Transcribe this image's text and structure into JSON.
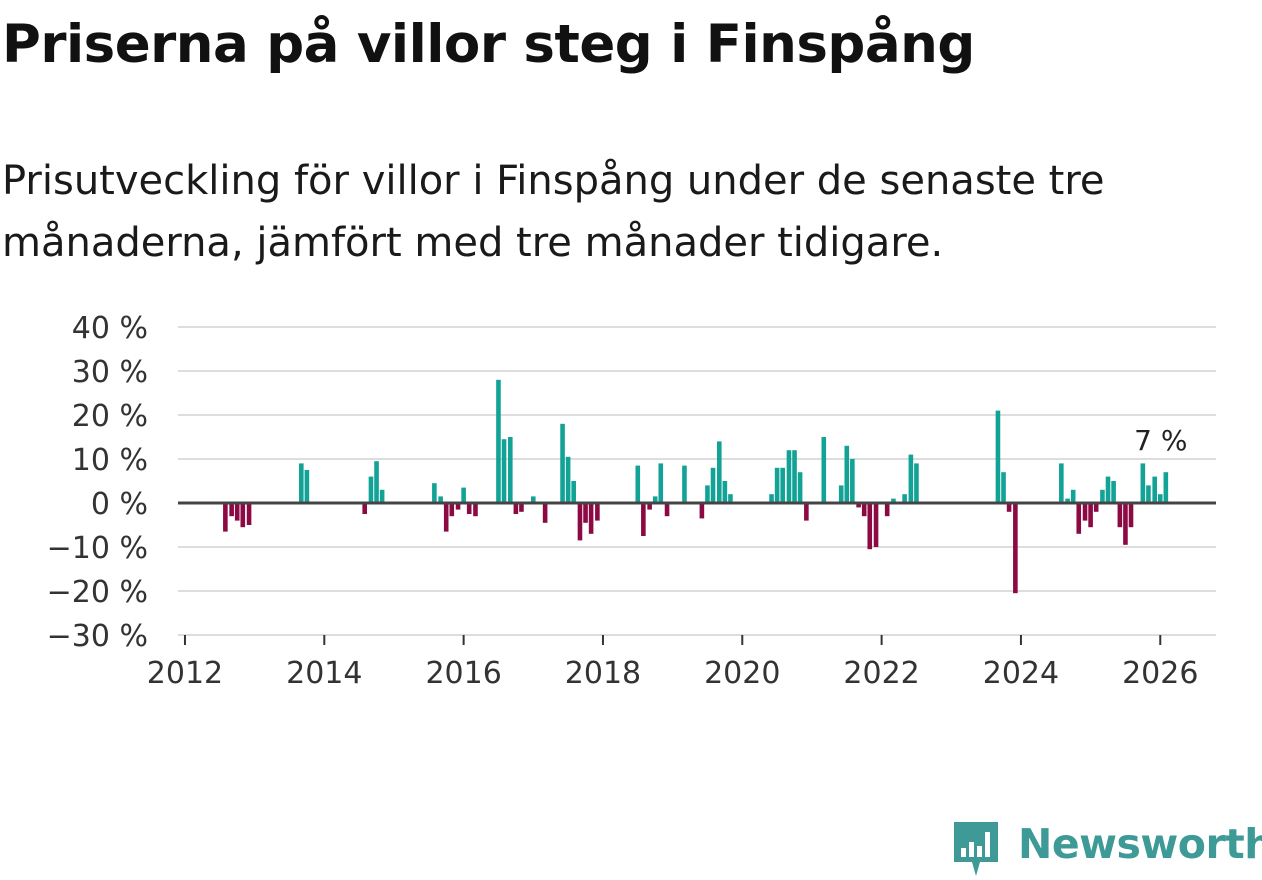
{
  "title": "Priserna på villor steg i Finspång",
  "subtitle": "Prisutveckling för villor i Finspång under de senaste tre månaderna, jämfört med tre månader tidigare.",
  "brand": {
    "name": "Newsworthy",
    "color": "#3d9a96",
    "icon": "newsworthy-logo-icon"
  },
  "colors": {
    "positive": "#13a396",
    "negative": "#8c0a44",
    "grid": "#dddddd",
    "zero": "#444444"
  },
  "chart_data": {
    "type": "bar",
    "title": "Priserna på villor steg i Finspång",
    "xlabel": "",
    "ylabel": "",
    "ylim": [
      -30,
      40
    ],
    "xlim": [
      2011.9,
      2026.8
    ],
    "grid": true,
    "y_ticks": [
      40,
      30,
      20,
      10,
      0,
      -10,
      -20,
      -30
    ],
    "y_tick_labels": [
      "40 %",
      "30 %",
      "20 %",
      "10 %",
      "0 %",
      "−10 %",
      "−20 %",
      "−30 %"
    ],
    "x_ticks": [
      2012,
      2014,
      2016,
      2018,
      2020,
      2022,
      2024,
      2026
    ],
    "x_tick_labels": [
      "2012",
      "2014",
      "2016",
      "2018",
      "2020",
      "2022",
      "2024",
      "2026"
    ],
    "last_value_label": "7 %",
    "series": [
      {
        "name": "Prisutveckling",
        "points": [
          {
            "x": 2012.58,
            "y": -6.5
          },
          {
            "x": 2012.67,
            "y": -3
          },
          {
            "x": 2012.75,
            "y": -4
          },
          {
            "x": 2012.83,
            "y": -5.5
          },
          {
            "x": 2012.92,
            "y": -5
          },
          {
            "x": 2013.67,
            "y": 9
          },
          {
            "x": 2013.75,
            "y": 7.5
          },
          {
            "x": 2014.58,
            "y": -2.5
          },
          {
            "x": 2014.67,
            "y": 6
          },
          {
            "x": 2014.75,
            "y": 9.5
          },
          {
            "x": 2014.83,
            "y": 3
          },
          {
            "x": 2015.58,
            "y": 4.5
          },
          {
            "x": 2015.67,
            "y": 1.5
          },
          {
            "x": 2015.75,
            "y": -6.5
          },
          {
            "x": 2015.83,
            "y": -3
          },
          {
            "x": 2015.92,
            "y": -1.5
          },
          {
            "x": 2016.0,
            "y": 3.5
          },
          {
            "x": 2016.08,
            "y": -2.5
          },
          {
            "x": 2016.17,
            "y": -3
          },
          {
            "x": 2016.5,
            "y": 28
          },
          {
            "x": 2016.58,
            "y": 14.5
          },
          {
            "x": 2016.67,
            "y": 15
          },
          {
            "x": 2016.75,
            "y": -2.5
          },
          {
            "x": 2016.83,
            "y": -2
          },
          {
            "x": 2017.0,
            "y": 1.5
          },
          {
            "x": 2017.17,
            "y": -4.5
          },
          {
            "x": 2017.42,
            "y": 18
          },
          {
            "x": 2017.5,
            "y": 10.5
          },
          {
            "x": 2017.58,
            "y": 5
          },
          {
            "x": 2017.67,
            "y": -8.5
          },
          {
            "x": 2017.75,
            "y": -4.5
          },
          {
            "x": 2017.83,
            "y": -7
          },
          {
            "x": 2017.92,
            "y": -4
          },
          {
            "x": 2018.5,
            "y": 8.5
          },
          {
            "x": 2018.58,
            "y": -7.5
          },
          {
            "x": 2018.67,
            "y": -1.5
          },
          {
            "x": 2018.75,
            "y": 1.5
          },
          {
            "x": 2018.83,
            "y": 9
          },
          {
            "x": 2018.92,
            "y": -3
          },
          {
            "x": 2019.17,
            "y": 8.5
          },
          {
            "x": 2019.42,
            "y": -3.5
          },
          {
            "x": 2019.5,
            "y": 4
          },
          {
            "x": 2019.58,
            "y": 8
          },
          {
            "x": 2019.67,
            "y": 14
          },
          {
            "x": 2019.75,
            "y": 5
          },
          {
            "x": 2019.83,
            "y": 2
          },
          {
            "x": 2020.42,
            "y": 2
          },
          {
            "x": 2020.5,
            "y": 8
          },
          {
            "x": 2020.58,
            "y": 8
          },
          {
            "x": 2020.67,
            "y": 12
          },
          {
            "x": 2020.75,
            "y": 12
          },
          {
            "x": 2020.83,
            "y": 7
          },
          {
            "x": 2020.92,
            "y": -4
          },
          {
            "x": 2021.17,
            "y": 15
          },
          {
            "x": 2021.42,
            "y": 4
          },
          {
            "x": 2021.5,
            "y": 13
          },
          {
            "x": 2021.58,
            "y": 10
          },
          {
            "x": 2021.67,
            "y": -1
          },
          {
            "x": 2021.75,
            "y": -3
          },
          {
            "x": 2021.83,
            "y": -10.5
          },
          {
            "x": 2021.92,
            "y": -10
          },
          {
            "x": 2022.08,
            "y": -3
          },
          {
            "x": 2022.17,
            "y": 1
          },
          {
            "x": 2022.33,
            "y": 2
          },
          {
            "x": 2022.42,
            "y": 11
          },
          {
            "x": 2022.5,
            "y": 9
          },
          {
            "x": 2023.67,
            "y": 21
          },
          {
            "x": 2023.75,
            "y": 7
          },
          {
            "x": 2023.83,
            "y": -2
          },
          {
            "x": 2023.92,
            "y": -20.5
          },
          {
            "x": 2024.58,
            "y": 9
          },
          {
            "x": 2024.67,
            "y": 1
          },
          {
            "x": 2024.75,
            "y": 3
          },
          {
            "x": 2024.83,
            "y": -7
          },
          {
            "x": 2024.92,
            "y": -4
          },
          {
            "x": 2025.0,
            "y": -5.5
          },
          {
            "x": 2025.08,
            "y": -2
          },
          {
            "x": 2025.17,
            "y": 3
          },
          {
            "x": 2025.25,
            "y": 6
          },
          {
            "x": 2025.33,
            "y": 5
          },
          {
            "x": 2025.42,
            "y": -5.5
          },
          {
            "x": 2025.5,
            "y": -9.5
          },
          {
            "x": 2025.58,
            "y": -5.5
          },
          {
            "x": 2025.75,
            "y": 9
          },
          {
            "x": 2025.83,
            "y": 4
          },
          {
            "x": 2025.92,
            "y": 6
          },
          {
            "x": 2026.0,
            "y": 2
          },
          {
            "x": 2026.08,
            "y": 7
          }
        ]
      }
    ]
  }
}
